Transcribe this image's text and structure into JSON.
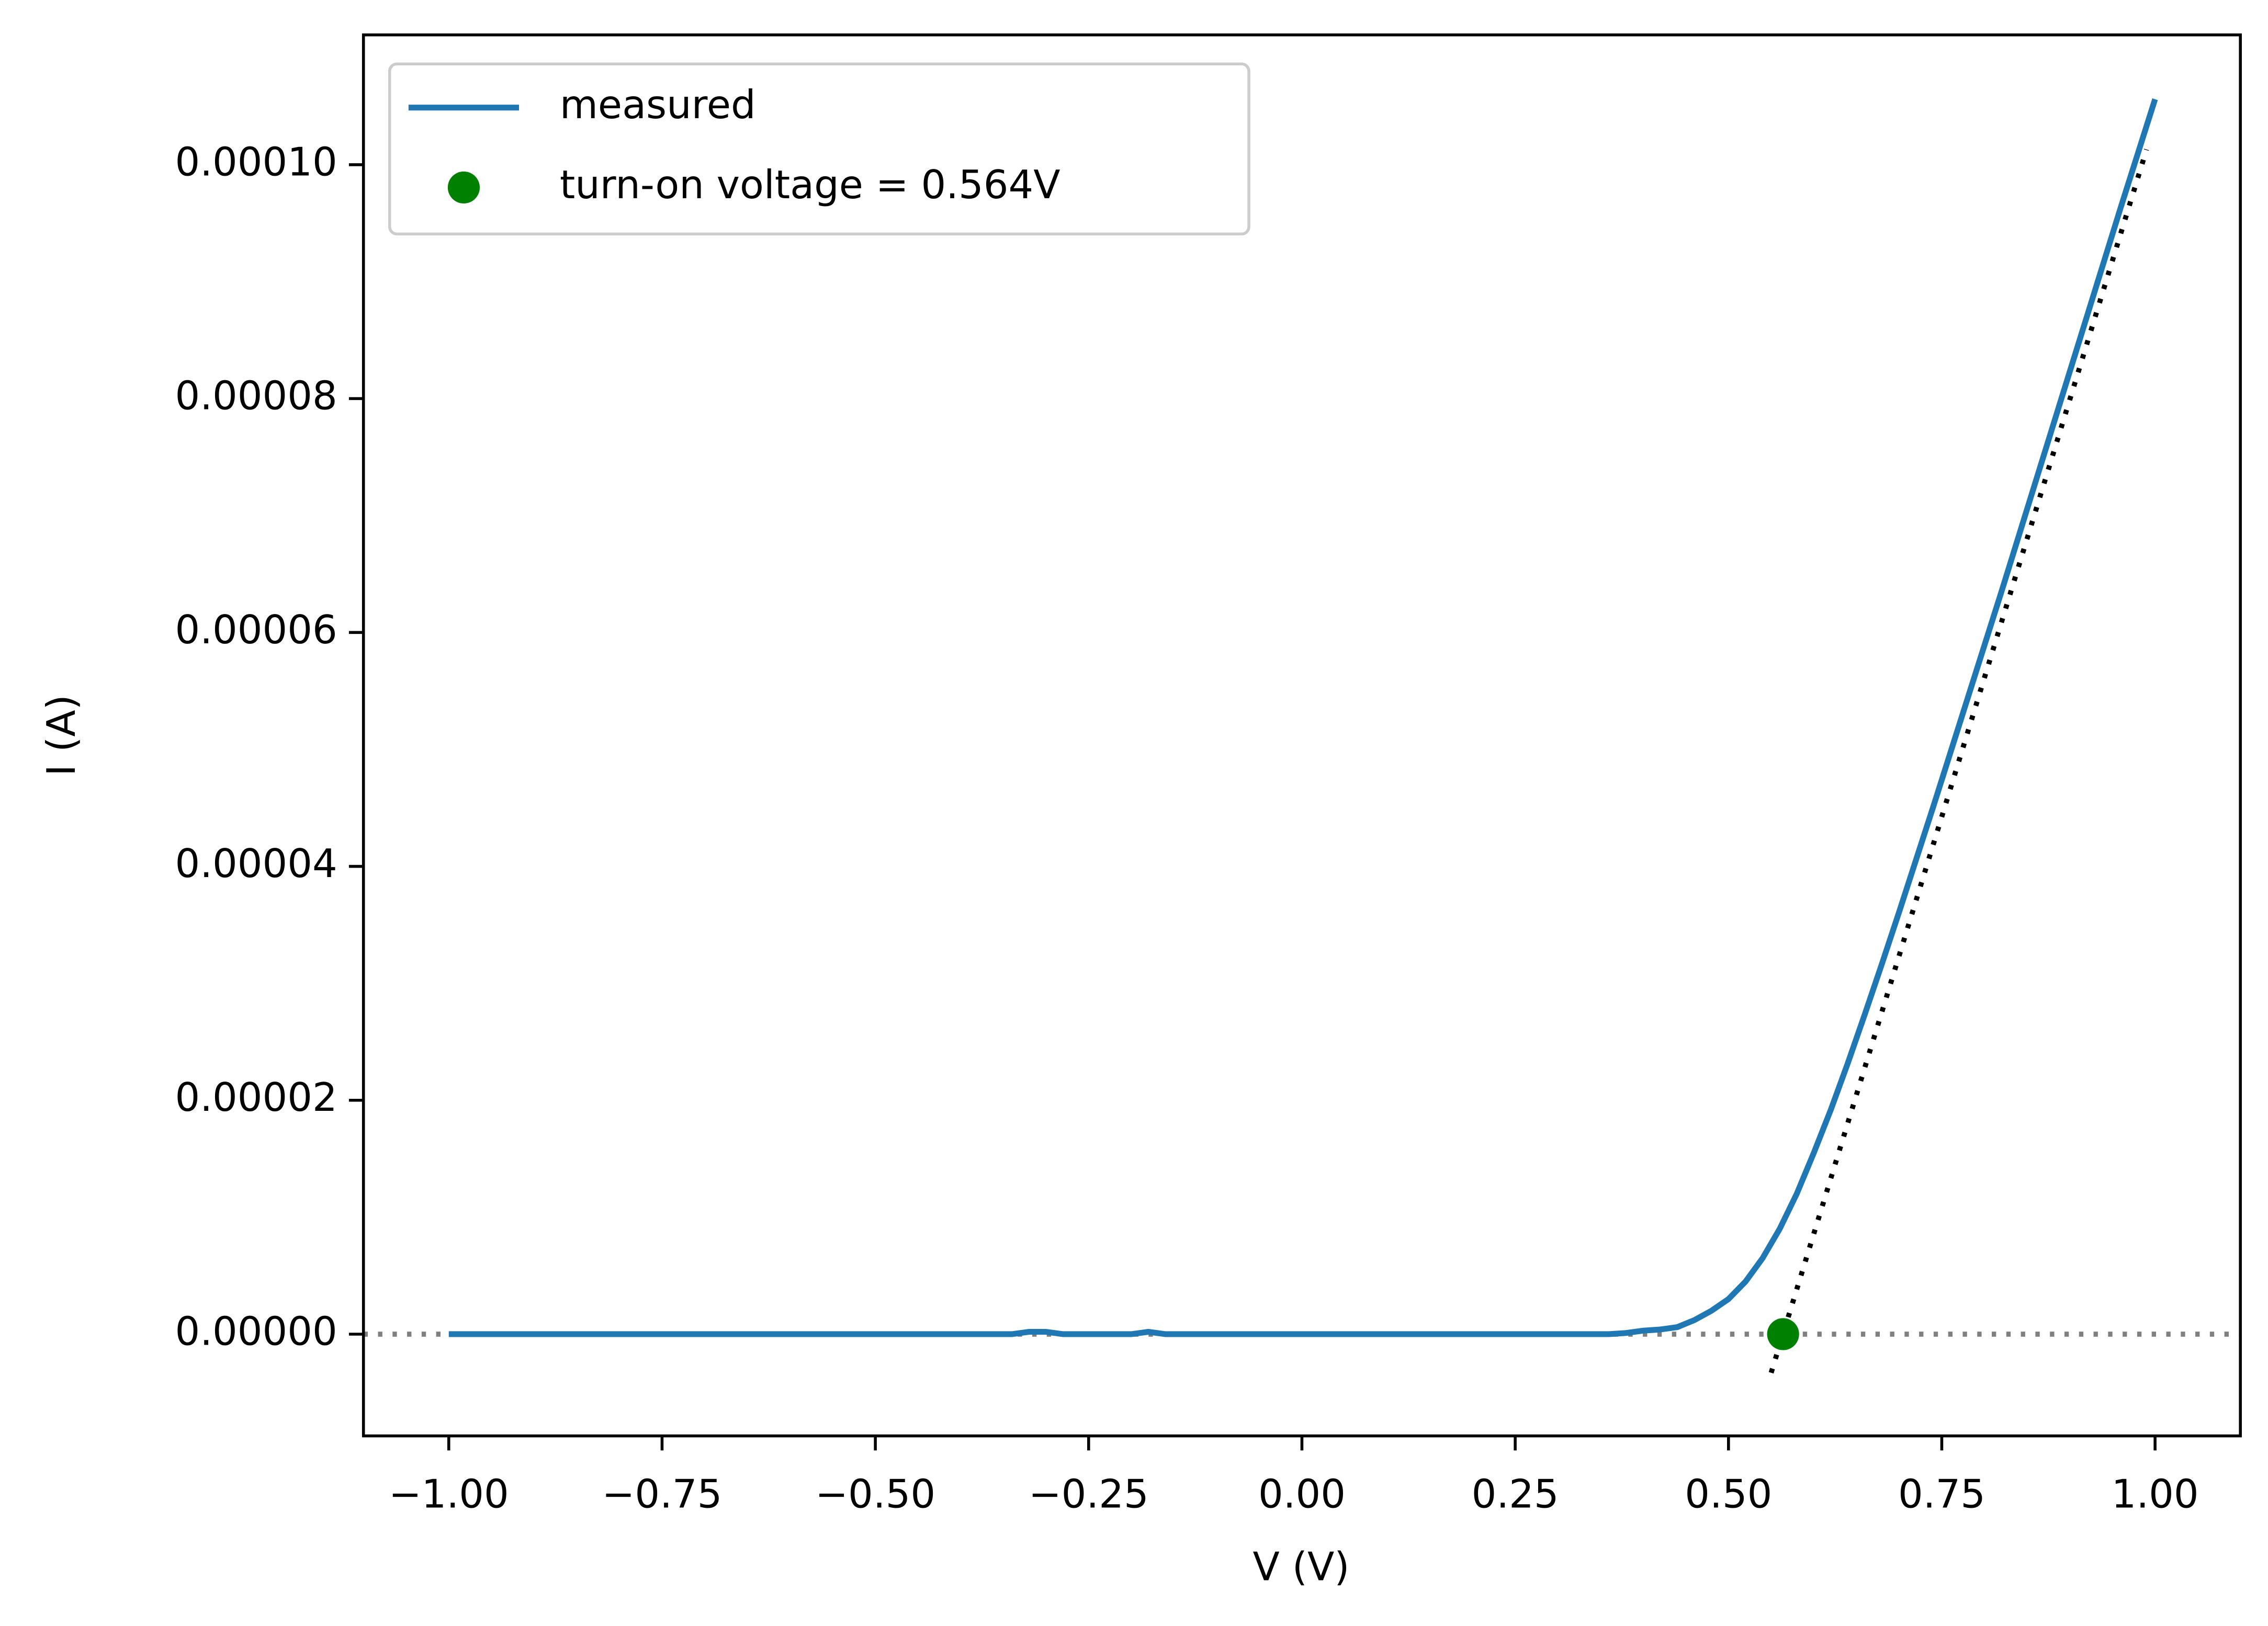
{
  "chart_data": {
    "type": "line",
    "xlabel": "V (V)",
    "ylabel": "I (A)",
    "xlim": [
      -1.1,
      1.1
    ],
    "ylim": [
      -8.7e-06,
      0.0001111
    ],
    "xticks": [
      {
        "value": -1,
        "label": "−1.00"
      },
      {
        "value": -0.75,
        "label": "−0.75"
      },
      {
        "value": -0.5,
        "label": "−0.50"
      },
      {
        "value": -0.25,
        "label": "−0.25"
      },
      {
        "value": 0,
        "label": "0.00"
      },
      {
        "value": 0.25,
        "label": "0.25"
      },
      {
        "value": 0.5,
        "label": "0.50"
      },
      {
        "value": 0.75,
        "label": "0.75"
      },
      {
        "value": 1,
        "label": "1.00"
      }
    ],
    "yticks": [
      {
        "value": 0,
        "label": "0.00000"
      },
      {
        "value": 2e-05,
        "label": "0.00002"
      },
      {
        "value": 4e-05,
        "label": "0.00004"
      },
      {
        "value": 6e-05,
        "label": "0.00006"
      },
      {
        "value": 8e-05,
        "label": "0.00008"
      },
      {
        "value": 0.0001,
        "label": "0.00010"
      }
    ],
    "legend": "upper left",
    "hlines": [
      {
        "value": 0,
        "color": "#808080",
        "style": "dotted"
      }
    ],
    "series": [
      {
        "name": "measured",
        "type": "line",
        "color": "#1f77b4",
        "x": [
          -1,
          -0.34,
          -0.32,
          -0.3,
          -0.28,
          -0.2,
          -0.18,
          -0.16,
          0.36,
          0.38,
          0.4,
          0.42,
          0.44,
          0.46,
          0.48,
          0.5,
          0.52,
          0.54,
          0.56,
          0.58,
          0.6,
          0.62,
          0.64,
          0.66,
          0.68,
          0.7,
          0.72,
          0.74,
          0.76,
          0.78,
          0.8,
          0.82,
          0.84,
          0.86,
          0.88,
          0.9,
          0.92,
          0.94,
          0.96,
          0.98,
          1
        ],
        "values": [
          0,
          0,
          2e-07,
          2e-07,
          0,
          0,
          2e-07,
          0,
          0,
          1e-07,
          3e-07,
          4e-07,
          6e-07,
          1.2e-06,
          2e-06,
          3e-06,
          4.5e-06,
          6.5e-06,
          9e-06,
          1.2e-05,
          1.55e-05,
          1.92e-05,
          2.32e-05,
          2.74e-05,
          3.17e-05,
          3.61e-05,
          4.06e-05,
          4.51e-05,
          4.97e-05,
          5.43e-05,
          5.89e-05,
          6.35e-05,
          6.82e-05,
          7.29e-05,
          7.76e-05,
          8.23e-05,
          8.7e-05,
          9.17e-05,
          9.64e-05,
          0.000101,
          0.0001056
        ]
      },
      {
        "type": "line",
        "style": "dotted",
        "color": "#000000",
        "x": [
          0.55,
          0.99
        ],
        "values": [
          -3.3e-06,
          0.0001013
        ]
      },
      {
        "name": "turn-on voltage = 0.564V",
        "type": "scatter",
        "color": "#008000",
        "x": [
          0.564
        ],
        "values": [
          0
        ]
      }
    ]
  }
}
